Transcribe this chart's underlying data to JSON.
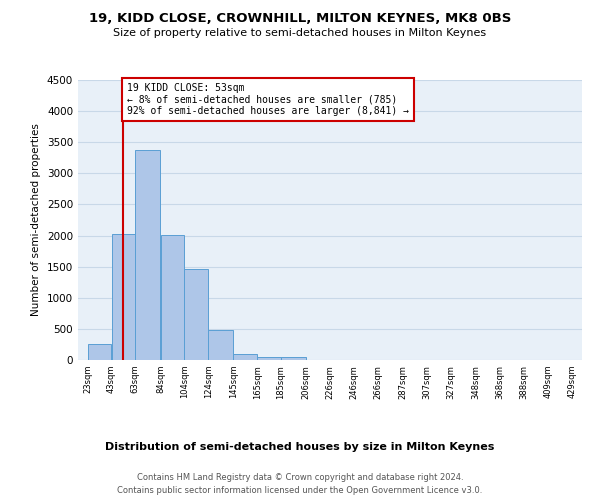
{
  "title1": "19, KIDD CLOSE, CROWNHILL, MILTON KEYNES, MK8 0BS",
  "title2": "Size of property relative to semi-detached houses in Milton Keynes",
  "xlabel": "Distribution of semi-detached houses by size in Milton Keynes",
  "ylabel": "Number of semi-detached properties",
  "footnote1": "Contains HM Land Registry data © Crown copyright and database right 2024.",
  "footnote2": "Contains public sector information licensed under the Open Government Licence v3.0.",
  "bar_edges": [
    23,
    43,
    63,
    84,
    104,
    124,
    145,
    165,
    185,
    206,
    226,
    246,
    266,
    287,
    307,
    327,
    348,
    368,
    388,
    409,
    429
  ],
  "bar_heights": [
    250,
    2020,
    3370,
    2010,
    1460,
    480,
    100,
    55,
    50,
    0,
    0,
    0,
    0,
    0,
    0,
    0,
    0,
    0,
    0,
    0
  ],
  "bar_color": "#aec6e8",
  "bar_edgecolor": "#5a9fd4",
  "grid_color": "#c8d8e8",
  "background_color": "#e8f0f8",
  "vline_x": 53,
  "vline_color": "#cc0000",
  "annotation_text": "19 KIDD CLOSE: 53sqm\n← 8% of semi-detached houses are smaller (785)\n92% of semi-detached houses are larger (8,841) →",
  "annotation_box_edgecolor": "#cc0000",
  "ylim": [
    0,
    4500
  ],
  "yticks": [
    0,
    500,
    1000,
    1500,
    2000,
    2500,
    3000,
    3500,
    4000,
    4500
  ]
}
